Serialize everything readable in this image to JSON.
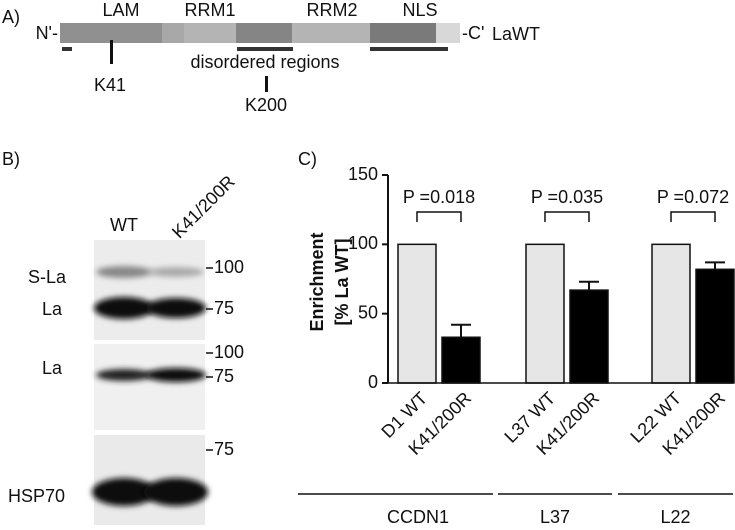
{
  "panel_a": {
    "label": "A)",
    "n_term": "N'-",
    "c_term": "-C'",
    "construct": "LaWT",
    "domains": [
      "LAM",
      "RRM1",
      "RRM2",
      "NLS"
    ],
    "disordered": "disordered regions",
    "sites": [
      "K41",
      "K200"
    ]
  },
  "panel_b": {
    "label": "B)",
    "lanes": [
      "WT",
      "K41/200R"
    ],
    "blots": [
      {
        "bands": [
          "S-La",
          "La"
        ],
        "markers": [
          "100",
          "75"
        ]
      },
      {
        "bands": [
          "La"
        ],
        "markers": [
          "100",
          "75"
        ]
      },
      {
        "bands": [
          "HSP70"
        ],
        "markers": [
          "75"
        ]
      }
    ]
  },
  "chart_data": {
    "type": "bar",
    "panel_label": "C)",
    "y_label": [
      "Enrichment",
      "[% La WT]"
    ],
    "categories": [
      "D1 WT",
      "K41/200R",
      "L37 WT",
      "K41/200R",
      "L22 WT",
      "K41/200R"
    ],
    "values": [
      100,
      33,
      100,
      67,
      100,
      82
    ],
    "errors": [
      null,
      9,
      null,
      6,
      null,
      5
    ],
    "colors": [
      "#e6e6e6",
      "#000000",
      "#e6e6e6",
      "#000000",
      "#e6e6e6",
      "#000000"
    ],
    "ylim": [
      0,
      150
    ],
    "yticks": [
      0,
      50,
      100,
      150
    ],
    "comparisons": [
      "P =0.018",
      "P =0.035",
      "P =0.072"
    ],
    "groups": [
      "CCDN1",
      "L37",
      "L22"
    ]
  }
}
